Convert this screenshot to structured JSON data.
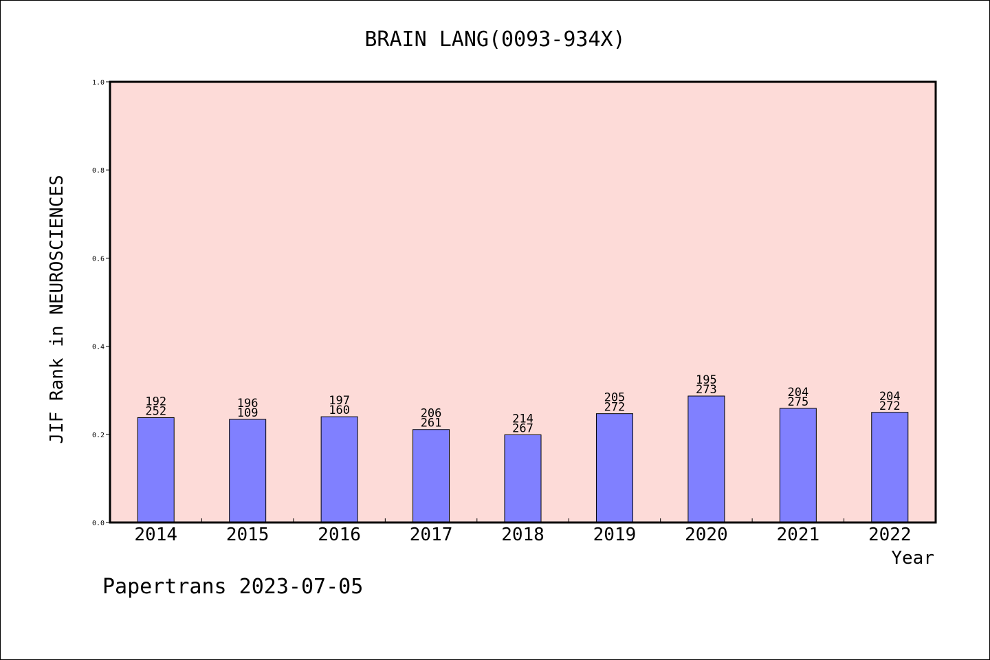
{
  "chart_data": {
    "type": "bar",
    "title": "BRAIN LANG(0093-934X)",
    "xlabel": "Year",
    "ylabel": "JIF Rank in NEUROSCIENCES",
    "ylim": [
      0,
      1.0
    ],
    "yticks": [
      "0.0",
      "0.2",
      "0.4",
      "0.6",
      "0.8",
      "1.0"
    ],
    "categories": [
      "2014",
      "2015",
      "2016",
      "2017",
      "2018",
      "2019",
      "2020",
      "2021",
      "2022"
    ],
    "values": [
      0.238,
      0.234,
      0.24,
      0.211,
      0.199,
      0.247,
      0.287,
      0.259,
      0.25
    ],
    "labels_top": [
      "192",
      "196",
      "197",
      "206",
      "214",
      "205",
      "195",
      "204",
      "204"
    ],
    "labels_bottom": [
      "252",
      "109",
      "160",
      "261",
      "267",
      "272",
      "273",
      "275",
      "272"
    ],
    "grid": false,
    "colors": {
      "plot_bg": "#fddbd8",
      "bar": "#8080ff",
      "axis": "#000000"
    }
  },
  "footer": {
    "text": "Papertrans 2023-07-05"
  }
}
